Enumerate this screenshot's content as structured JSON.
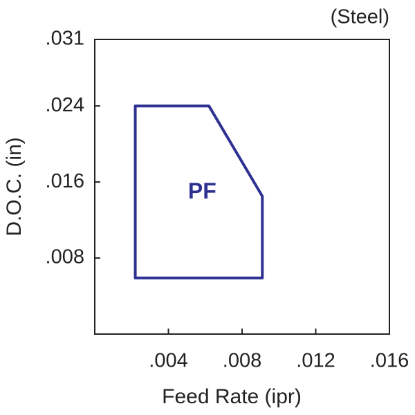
{
  "chart_data": {
    "type": "area",
    "annotation": "(Steel)",
    "x_label": "Feed Rate (ipr)",
    "y_label": "D.O.C. (in)",
    "xlim": [
      0,
      0.016
    ],
    "ylim": [
      0,
      0.031
    ],
    "xticks": [
      {
        "value": 0.004,
        "label": ".004"
      },
      {
        "value": 0.008,
        "label": ".008"
      },
      {
        "value": 0.012,
        "label": ".012"
      },
      {
        "value": 0.016,
        "label": ".016"
      }
    ],
    "yticks": [
      {
        "value": 0.008,
        "label": ".008"
      },
      {
        "value": 0.016,
        "label": ".016"
      },
      {
        "value": 0.024,
        "label": ".024"
      },
      {
        "value": 0.031,
        "label": ".031"
      }
    ],
    "series": [
      {
        "name": "PF",
        "color": "#2e3192",
        "x": [
          0.0022,
          0.0062,
          0.0091,
          0.0091,
          0.0022
        ],
        "values": [
          0.024,
          0.024,
          0.0145,
          0.0059,
          0.0059
        ]
      }
    ]
  }
}
